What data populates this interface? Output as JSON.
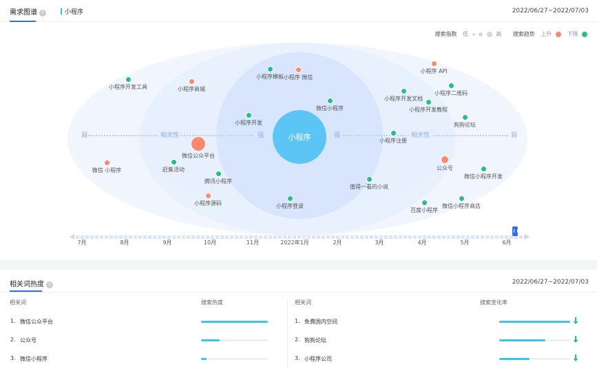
{
  "header": {
    "tab_active": "需求图谱",
    "help": "?",
    "keyword": "小程序",
    "date_range": "2022/06/27~2022/07/03"
  },
  "legend": {
    "index_label": "搜索指数",
    "low": "低",
    "high": "高",
    "trend_label": "搜索趋势",
    "up": "上升",
    "down": "下降",
    "up_color": "#f98a6f",
    "down_color": "#27be8a"
  },
  "graph": {
    "center": "小程序",
    "weak": "弱",
    "strong": "强",
    "relevance": "相关性",
    "nodes": [
      {
        "label": "小程序开发工具",
        "trend": "down",
        "size": "small"
      },
      {
        "label": "小程序商城",
        "trend": "up",
        "size": "small"
      },
      {
        "label": "小程序模板",
        "trend": "down",
        "size": "small"
      },
      {
        "label": "小程序 微信",
        "trend": "up",
        "size": "small"
      },
      {
        "label": "微信小程序",
        "trend": "down",
        "size": "small"
      },
      {
        "label": "小程序开发",
        "trend": "down",
        "size": "small"
      },
      {
        "label": "微信公众平台",
        "trend": "up",
        "size": "large"
      },
      {
        "label": "赶集活动",
        "trend": "down",
        "size": "small"
      },
      {
        "label": "微信 小程序",
        "trend": "up",
        "size": "small"
      },
      {
        "label": "腾讯小程序",
        "trend": "down",
        "size": "small"
      },
      {
        "label": "小程序源码",
        "trend": "up",
        "size": "small"
      },
      {
        "label": "小程序登录",
        "trend": "down",
        "size": "small"
      },
      {
        "label": "值得一看的小说",
        "trend": "down",
        "size": "small"
      },
      {
        "label": "小程序 API",
        "trend": "up",
        "size": "small"
      },
      {
        "label": "小程序二维码",
        "trend": "down",
        "size": "small"
      },
      {
        "label": "小程序开发文档",
        "trend": "down",
        "size": "small"
      },
      {
        "label": "小程序开发教程",
        "trend": "down",
        "size": "small"
      },
      {
        "label": "狗狗论坛",
        "trend": "down",
        "size": "small"
      },
      {
        "label": "小程序注册",
        "trend": "down",
        "size": "small"
      },
      {
        "label": "公众号",
        "trend": "up",
        "size": "medium"
      },
      {
        "label": "微信小程序开发",
        "trend": "down",
        "size": "small"
      },
      {
        "label": "百度小程序",
        "trend": "down",
        "size": "small"
      },
      {
        "label": "微信小程序商店",
        "trend": "down",
        "size": "small"
      }
    ]
  },
  "timeline": {
    "months": [
      "7月",
      "8月",
      "9月",
      "10月",
      "11月",
      "2022年1月",
      "2月",
      "3月",
      "4月",
      "5月",
      "6月"
    ]
  },
  "related": {
    "title": "相关词热度",
    "help": "?",
    "date_range": "2022/06/27~2022/07/03",
    "left": {
      "col_word": "相关词",
      "col_metric": "搜索热度",
      "rows": [
        {
          "rank": "1.",
          "word": "微信公众平台",
          "value": 1.0
        },
        {
          "rank": "2.",
          "word": "公众号",
          "value": 0.28
        },
        {
          "rank": "3.",
          "word": "微信小程序",
          "value": 0.08
        }
      ]
    },
    "right": {
      "col_word": "相关词",
      "col_metric": "搜索变化率",
      "rows": [
        {
          "rank": "1.",
          "word": "免費国内空间",
          "value": 1.0,
          "trend": "down"
        },
        {
          "rank": "2.",
          "word": "狗狗论坛",
          "value": 0.65,
          "trend": "down"
        },
        {
          "rank": "3.",
          "word": "小程序公司",
          "value": 0.43,
          "trend": "down"
        }
      ]
    }
  }
}
